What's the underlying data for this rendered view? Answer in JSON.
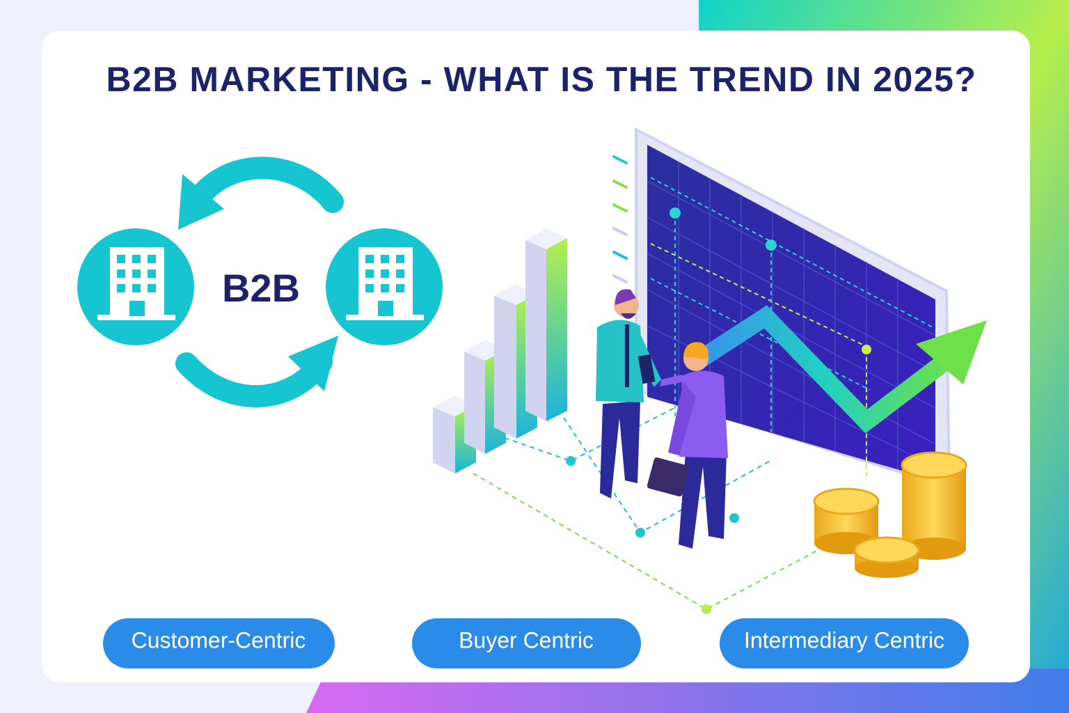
{
  "header": {
    "title": "B2B MARKETING - WHAT IS THE TREND IN 2025?"
  },
  "diagram": {
    "label": "B2B"
  },
  "pills": [
    "Customer-Centric",
    "Buyer Centric",
    "Intermediary Centric"
  ]
}
